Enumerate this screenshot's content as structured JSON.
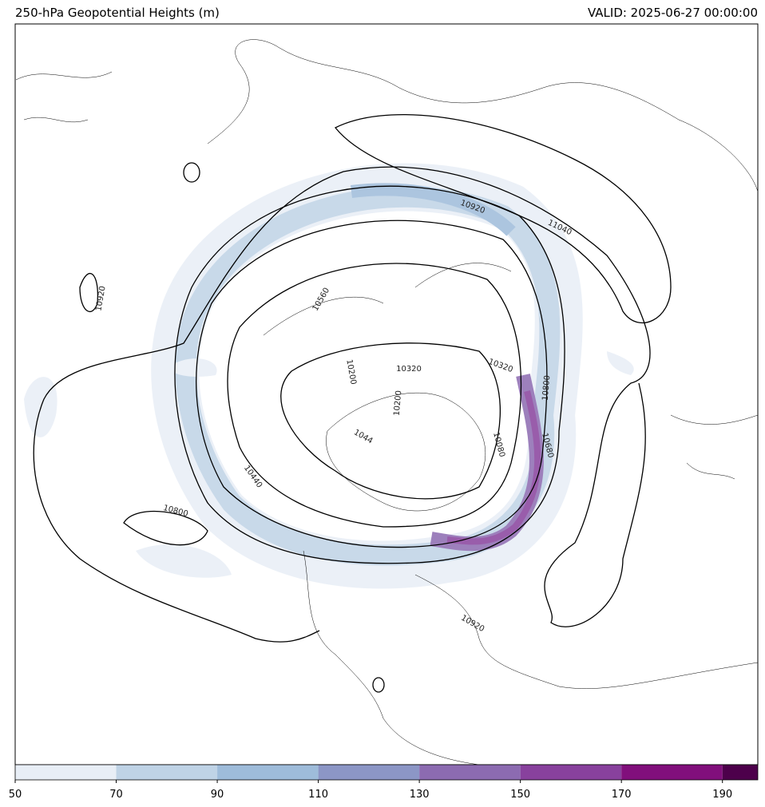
{
  "map": {
    "title": "250-hPa Geopotential Heights (m)",
    "valid": "VALID: 2025-06-27 00:00:00",
    "contour_labels": [
      "10920",
      "10560",
      "10200",
      "10320",
      "10200",
      "1044",
      "10440",
      "10080",
      "10680",
      "10800",
      "10320",
      "10920",
      "11040",
      "10800",
      "10920"
    ],
    "colorbar": {
      "type": "colorbar",
      "range": [
        50,
        197
      ],
      "levels": [
        50,
        70,
        90,
        110,
        130,
        150,
        170,
        190
      ],
      "colors": [
        "#e8eef6",
        "#bfd3e6",
        "#9ebcda",
        "#8c96c6",
        "#8c6bb1",
        "#88419d",
        "#810f7c",
        "#4d004b"
      ],
      "ticks": [
        50,
        70,
        90,
        110,
        130,
        150,
        170,
        190
      ]
    }
  }
}
